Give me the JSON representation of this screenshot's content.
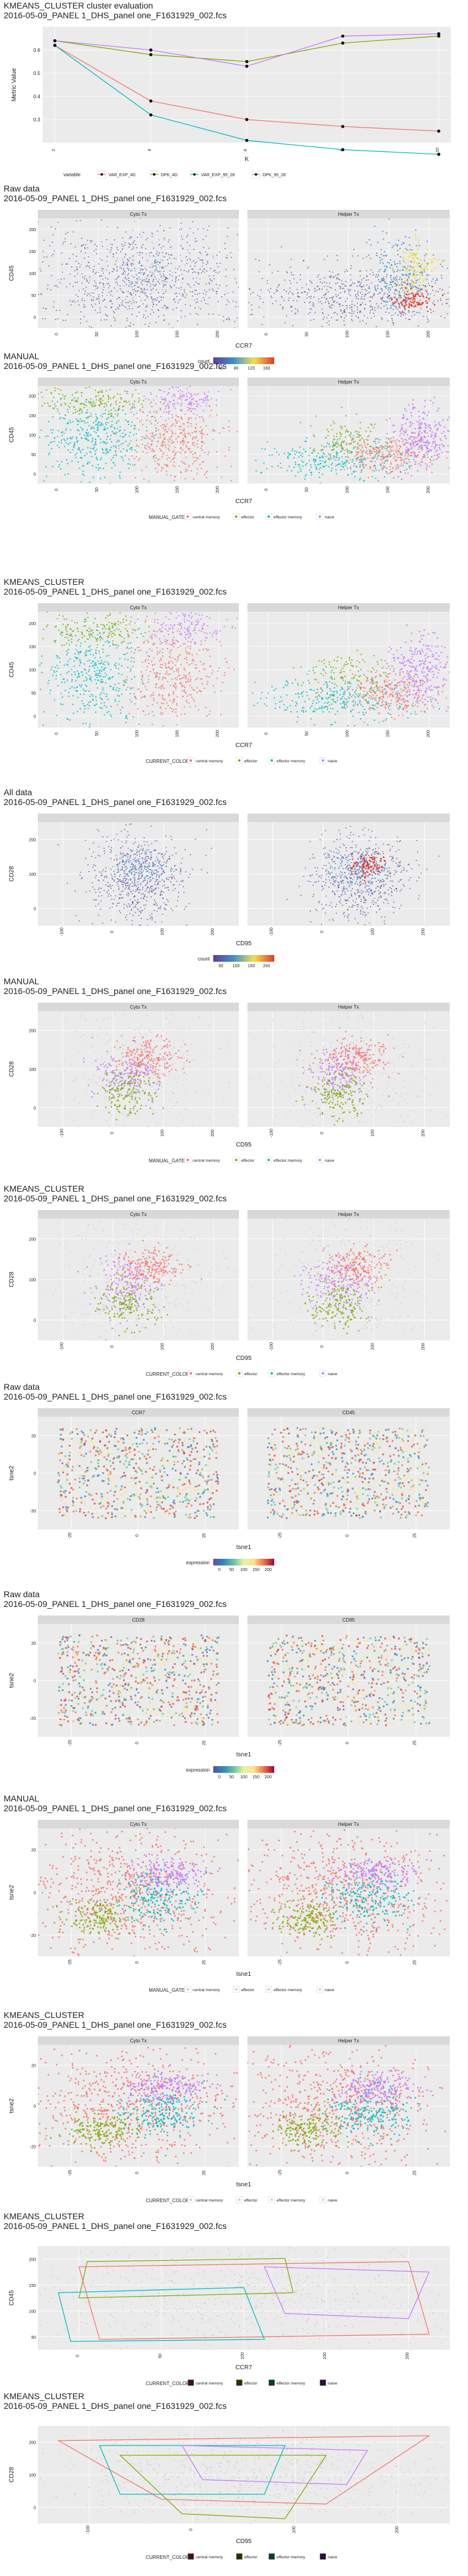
{
  "palette": {
    "red": "#F8766D",
    "green": "#7CAE00",
    "teal": "#00BFC4",
    "purple": "#C77CFF",
    "dark_red": "#3d1414",
    "dark_green": "#223300",
    "dark_teal": "#0d3a3a",
    "dark_purple": "#2a0f3a",
    "panel_bg": "#EBEBEB",
    "strip_bg": "#D9D9D9",
    "grid": "#FFFFFF",
    "density_low": "#5b3f99"
  },
  "sections": [
    {
      "id": "eval",
      "title": [
        "KMEANS_CLUSTER cluster evaluation",
        "2016-05-09_PANEL 1_DHS_panel one_F1631929_002.fcs"
      ],
      "chart_data": {
        "type": "line",
        "xlabel": "K",
        "ylabel": "Metric Value",
        "x": [
          2,
          4,
          6,
          8,
          10
        ],
        "xticks": [
          "2",
          "4",
          "6",
          "8",
          "10"
        ],
        "yticks": [
          "0.3",
          "0.4",
          "0.5",
          "0.6"
        ],
        "ylim": [
          0.2,
          0.7
        ],
        "series": [
          {
            "name": "VAR_EXP_4D",
            "values": [
              0.62,
              0.38,
              0.3,
              0.27,
              0.25
            ]
          },
          {
            "name": "DPK_4D",
            "values": [
              0.64,
              0.58,
              0.55,
              0.63,
              0.66
            ]
          },
          {
            "name": "VAR_EXP_95_28",
            "values": [
              0.62,
              0.32,
              0.21,
              0.17,
              0.15
            ]
          },
          {
            "name": "DPK_95_28",
            "values": [
              0.64,
              0.6,
              0.53,
              0.66,
              0.67
            ]
          }
        ],
        "legend_title": "variable"
      }
    },
    {
      "id": "raw-ccr7-cd45",
      "title": [
        "Raw data",
        "2016-05-09_PANEL 1_DHS_panel one_F1631929_002.fcs"
      ],
      "kind": "density",
      "facets": [
        "Cyto Tx",
        "Helper Tx"
      ],
      "xlabel": "CCR7",
      "ylabel": "CD45",
      "xticks": [
        "0",
        "50",
        "100",
        "150",
        "200"
      ],
      "yticks": [
        "0",
        "50",
        "100",
        "150",
        "200"
      ],
      "legend": {
        "type": "gradient",
        "title": "count",
        "ticks": [
          "40",
          "80",
          "120",
          "160"
        ],
        "colors": [
          "#5b3f99",
          "#3f8fd0",
          "#f0e050",
          "#e23a2a"
        ]
      }
    },
    {
      "id": "manual-ccr7-cd45",
      "title": [
        "MANUAL",
        "2016-05-09_PANEL 1_DHS_panel one_F1631929_002.fcs"
      ],
      "kind": "categorical",
      "facets": [
        "Cyto Tx",
        "Helper Tx"
      ],
      "xlabel": "CCR7",
      "ylabel": "CD45",
      "xticks": [
        "0",
        "50",
        "100",
        "150",
        "200"
      ],
      "yticks": [
        "0",
        "50",
        "100",
        "150",
        "200"
      ],
      "legend": {
        "type": "categories",
        "title": "MANUAL_GATE",
        "items": [
          "central memory",
          "effector",
          "effector memory",
          "naive"
        ]
      }
    },
    {
      "id": "kmeans-ccr7-cd45",
      "title": [
        "KMEANS_CLUSTER",
        "2016-05-09_PANEL 1_DHS_panel one_F1631929_002.fcs"
      ],
      "kind": "categorical",
      "facets": [
        "Cyto Tx",
        "Helper Tx"
      ],
      "xlabel": "CCR7",
      "ylabel": "CD45",
      "xticks": [
        "0",
        "50",
        "100",
        "150",
        "200"
      ],
      "yticks": [
        "0",
        "50",
        "100",
        "150",
        "200"
      ],
      "legend": {
        "type": "categories",
        "title": "CURRENT_COLOR",
        "items": [
          "central memory",
          "effector",
          "effector memory",
          "naive"
        ]
      }
    },
    {
      "id": "raw-cd95-cd28",
      "title": [
        "All data",
        "2016-05-09_PANEL 1_DHS_panel one_F1631929_002.fcs"
      ],
      "kind": "density2",
      "facets": [
        "",
        ""
      ],
      "xlabel": "CD95",
      "ylabel": "CD28",
      "xticks": [
        "-100",
        "0",
        "100",
        "200"
      ],
      "yticks": [
        "0",
        "100",
        "200"
      ],
      "legend": {
        "type": "gradient",
        "title": "count",
        "ticks": [
          "50",
          "100",
          "150",
          "200"
        ],
        "colors": [
          "#5b3f99",
          "#3f8fd0",
          "#f0e050",
          "#e23a2a"
        ]
      }
    },
    {
      "id": "manual-cd95-cd28",
      "title": [
        "MANUAL",
        "2016-05-09_PANEL 1_DHS_panel one_F1631929_002.fcs"
      ],
      "kind": "categorical2",
      "facets": [
        "Cyto Tx",
        "Helper Tx"
      ],
      "xlabel": "CD95",
      "ylabel": "CD28",
      "xticks": [
        "-100",
        "0",
        "100",
        "200"
      ],
      "yticks": [
        "0",
        "100",
        "200"
      ],
      "legend": {
        "type": "categories",
        "title": "MANUAL_GATE",
        "items": [
          "central memory",
          "effector",
          "effector memory",
          "naive"
        ]
      }
    },
    {
      "id": "kmeans-cd95-cd28",
      "title": [
        "KMEANS_CLUSTER",
        "2016-05-09_PANEL 1_DHS_panel one_F1631929_002.fcs"
      ],
      "kind": "categorical2",
      "facets": [
        "Cyto Tx",
        "Helper Tx"
      ],
      "xlabel": "CD95",
      "ylabel": "CD28",
      "xticks": [
        "-100",
        "0",
        "100",
        "200"
      ],
      "yticks": [
        "0",
        "100",
        "200"
      ],
      "legend": {
        "type": "categories",
        "title": "CURRENT_COLOR",
        "items": [
          "central memory",
          "effector",
          "effector memory",
          "naive"
        ]
      }
    },
    {
      "id": "tsne-ccr7-cd45",
      "title": [
        "Raw data",
        "2016-05-09_PANEL 1_DHS_panel one_F1631929_002.fcs"
      ],
      "kind": "tsne-expr",
      "facets": [
        "CCR7",
        "CD45"
      ],
      "xlabel": "tsne1",
      "ylabel": "tsne2",
      "xticks": [
        "-25",
        "0",
        "25"
      ],
      "yticks": [
        "-20",
        "0",
        "20"
      ],
      "legend": {
        "type": "gradient",
        "title": "expression",
        "ticks": [
          "0",
          "50",
          "100",
          "150",
          "200"
        ],
        "colors": [
          "#5e4fa2",
          "#3288bd",
          "#66c2a5",
          "#e6f598",
          "#fee08b",
          "#f46d43",
          "#9e0142"
        ]
      }
    },
    {
      "id": "tsne-cd28-cd95",
      "title": [
        "Raw data",
        "2016-05-09_PANEL 1_DHS_panel one_F1631929_002.fcs"
      ],
      "kind": "tsne-expr2",
      "facets": [
        "CD28",
        "CD95"
      ],
      "xlabel": "tsne1",
      "ylabel": "tsne2",
      "xticks": [
        "-25",
        "0",
        "25"
      ],
      "yticks": [
        "-20",
        "0",
        "20"
      ],
      "legend": {
        "type": "gradient",
        "title": "expression",
        "ticks": [
          "0",
          "50",
          "100",
          "150",
          "200"
        ],
        "colors": [
          "#5e4fa2",
          "#3288bd",
          "#66c2a5",
          "#e6f598",
          "#fee08b",
          "#f46d43",
          "#9e0142"
        ]
      }
    },
    {
      "id": "tsne-manual",
      "title": [
        "MANUAL",
        "2016-05-09_PANEL 1_DHS_panel one_F1631929_002.fcs"
      ],
      "kind": "tsne-cat",
      "facets": [
        "Cyto Tx",
        "Helper Tx"
      ],
      "xlabel": "tsne1",
      "ylabel": "tsne2",
      "xticks": [
        "-25",
        "0",
        "25"
      ],
      "yticks": [
        "-20",
        "0",
        "20"
      ],
      "legend": {
        "type": "categories",
        "title": "MANUAL_GATE",
        "items": [
          "central memory",
          "effector",
          "effector memory",
          "naive"
        ],
        "light": true
      }
    },
    {
      "id": "tsne-kmeans",
      "title": [
        "KMEANS_CLUSTER",
        "2016-05-09_PANEL 1_DHS_panel one_F1631929_002.fcs"
      ],
      "kind": "tsne-cat2",
      "facets": [
        "Cyto Tx",
        "Helper Tx"
      ],
      "xlabel": "tsne1",
      "ylabel": "tsne2",
      "xticks": [
        "-25",
        "0",
        "25"
      ],
      "yticks": [
        "-20",
        "0",
        "20"
      ],
      "legend": {
        "type": "categories",
        "title": "CURRENT_COLOR",
        "items": [
          "central memory",
          "effector",
          "effector memory",
          "naive"
        ],
        "light": true
      }
    },
    {
      "id": "hull-ccr7-cd45",
      "title": [
        "KMEANS_CLUSTER",
        "2016-05-09_PANEL 1_DHS_panel one_F1631929_002.fcs"
      ],
      "kind": "hull",
      "facets": [],
      "xlabel": "CCR7",
      "ylabel": "CD45",
      "xticks": [
        "0",
        "50",
        "100",
        "150",
        "200"
      ],
      "yticks": [
        "50",
        "100",
        "150",
        "200"
      ],
      "legend": {
        "type": "categories",
        "title": "CURRENT_COLOR",
        "items": [
          "central memory",
          "effector",
          "effector memory",
          "naive"
        ],
        "dark": true
      }
    },
    {
      "id": "hull-cd95-cd28",
      "title": [
        "KMEANS_CLUSTER",
        "2016-05-09_PANEL 1_DHS_panel one_F1631929_002.fcs"
      ],
      "kind": "hull2",
      "facets": [],
      "xlabel": "CD95",
      "ylabel": "CD28",
      "xticks": [
        "-100",
        "0",
        "100",
        "200"
      ],
      "yticks": [
        "0",
        "100",
        "200"
      ],
      "legend": {
        "type": "categories",
        "title": "CURRENT_COLOR",
        "items": [
          "central memory",
          "effector",
          "effector memory",
          "naive"
        ],
        "dark": true
      }
    }
  ]
}
